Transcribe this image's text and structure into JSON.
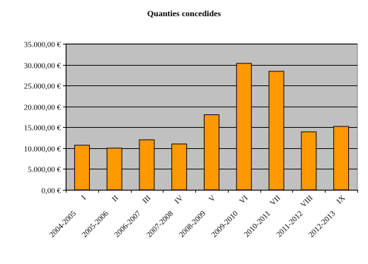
{
  "chart_data": {
    "type": "bar",
    "title": "Quanties concedides",
    "xlabel": "",
    "ylabel": "",
    "categories_roman": [
      "I",
      "II",
      "III",
      "IV",
      "V",
      "VI",
      "VII",
      "VIII",
      "IX"
    ],
    "categories_years": [
      "2004-2005",
      "2005-2006",
      "2006-2007",
      "2007-2008",
      "2008-2009",
      "2009-2010",
      "2010-2011",
      "2011-2012",
      "2012-2013"
    ],
    "values": [
      10700,
      10000,
      12000,
      11000,
      18000,
      30300,
      28400,
      13900,
      15200
    ],
    "ylim": [
      0,
      35000
    ],
    "yticks": [
      0,
      5000,
      10000,
      15000,
      20000,
      25000,
      30000,
      35000
    ],
    "ytick_labels": [
      "0,00 €",
      "5.000,00 €",
      "10.000,00 €",
      "15.000,00 €",
      "20.000,00 €",
      "25.000,00 €",
      "30.000,00 €",
      "35.000,00 €"
    ],
    "grid": true,
    "colors": {
      "bar": "#FF9900",
      "bar_border": "#000000",
      "plot_background": "#C0C0C0",
      "grid": "#000000"
    }
  }
}
